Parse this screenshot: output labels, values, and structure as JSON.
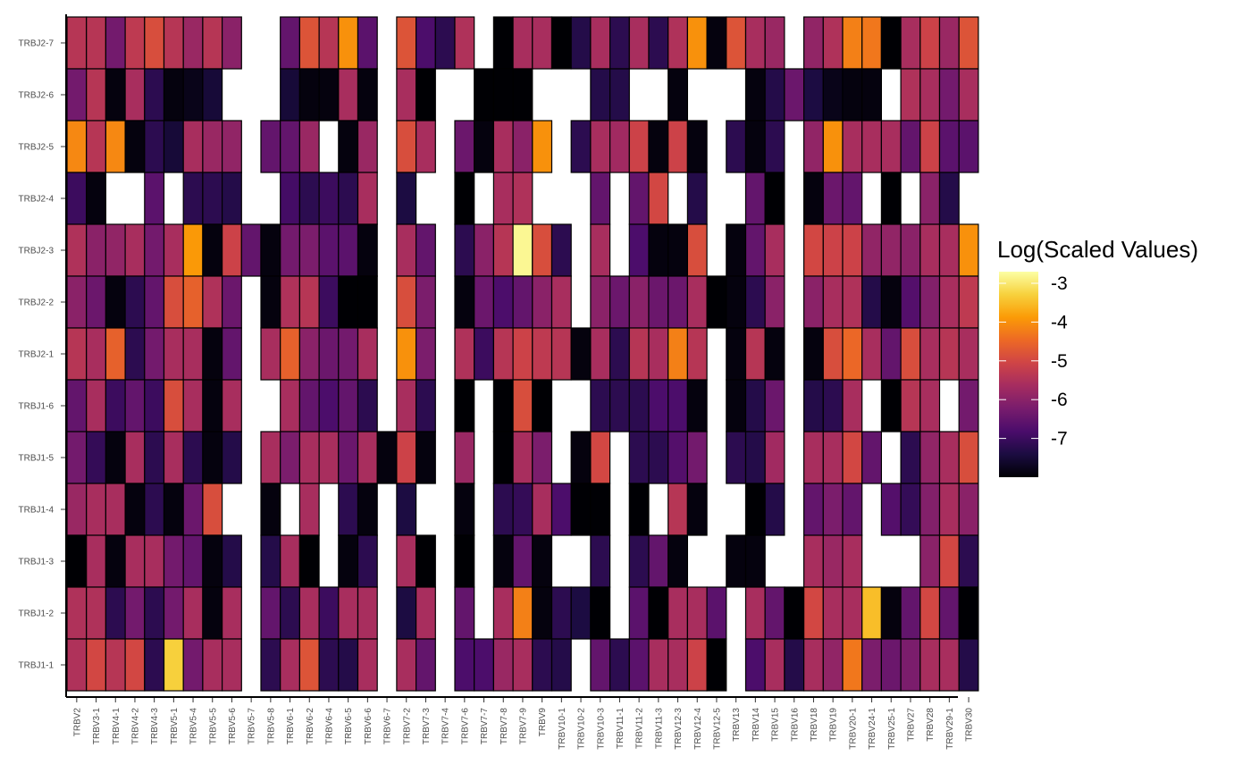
{
  "chart_data": {
    "type": "heatmap",
    "title": "",
    "xlabel": "",
    "ylabel": "",
    "x_categories": [
      "TRBV2",
      "TRBV3-1",
      "TRBV4-1",
      "TRBV4-2",
      "TRBV4-3",
      "TRBV5-1",
      "TRBV5-4",
      "TRBV5-5",
      "TRBV5-6",
      "TRBV5-7",
      "TRBV5-8",
      "TRBV6-1",
      "TRBV6-2",
      "TRBV6-4",
      "TRBV6-5",
      "TRBV6-6",
      "TRBV6-7",
      "TRBV7-2",
      "TRBV7-3",
      "TRBV7-4",
      "TRBV7-6",
      "TRBV7-7",
      "TRBV7-8",
      "TRBV7-9",
      "TRBV9",
      "TRBV10-1",
      "TRBV10-2",
      "TRBV10-3",
      "TRBV11-1",
      "TRBV11-2",
      "TRBV11-3",
      "TRBV12-3",
      "TRBV12-4",
      "TRBV12-5",
      "TRBV13",
      "TRBV14",
      "TRBV15",
      "TRBV16",
      "TRBV18",
      "TRBV19",
      "TRBV20-1",
      "TRBV24-1",
      "TRBV25-1",
      "TRBV27",
      "TRBV28",
      "TRBV29-1",
      "TRBV30"
    ],
    "y_categories": [
      "TRBJ2-7",
      "TRBJ2-6",
      "TRBJ2-5",
      "TRBJ2-4",
      "TRBJ2-3",
      "TRBJ2-2",
      "TRBJ2-1",
      "TRBJ1-6",
      "TRBJ1-5",
      "TRBJ1-4",
      "TRBJ1-3",
      "TRBJ1-2",
      "TRBJ1-1"
    ],
    "values": [
      [
        -5.4,
        -5.4,
        -6.3,
        -5.3,
        -4.9,
        -5.4,
        -5.8,
        -5.4,
        -6.0,
        null,
        null,
        -6.5,
        -4.8,
        -5.4,
        -4.0,
        -6.6,
        null,
        -4.8,
        -6.8,
        -7.2,
        -5.5,
        null,
        -8.0,
        -5.6,
        -5.6,
        -8.0,
        -7.3,
        -5.6,
        -7.2,
        -5.6,
        -7.2,
        -5.5,
        -4.0,
        -7.9,
        -4.8,
        -5.6,
        -5.8,
        null,
        -5.9,
        -5.5,
        -4.2,
        -4.3,
        -8.0,
        -5.6,
        -5.1,
        -5.8,
        -4.8
      ],
      [
        -6.3,
        -5.4,
        -7.9,
        -5.6,
        -7.2,
        -7.9,
        -7.8,
        -7.5,
        null,
        null,
        null,
        -7.5,
        -7.9,
        -7.9,
        -5.6,
        -7.9,
        null,
        -5.6,
        -8.0,
        null,
        null,
        -8.0,
        -8.0,
        -8.0,
        null,
        null,
        null,
        -7.3,
        -7.3,
        null,
        null,
        -7.9,
        null,
        null,
        null,
        -7.9,
        -7.3,
        -6.4,
        -7.4,
        -7.8,
        -7.9,
        -7.9,
        null,
        -5.5,
        -5.6,
        -6.3,
        -5.6
      ],
      [
        -4.1,
        -5.4,
        -4.1,
        -7.9,
        -7.2,
        -7.5,
        -5.6,
        -5.8,
        -5.9,
        null,
        -6.5,
        -6.5,
        -5.8,
        null,
        -7.9,
        -5.8,
        null,
        -4.9,
        -5.6,
        null,
        -6.4,
        -7.9,
        -5.6,
        -6.0,
        -4.0,
        null,
        -7.2,
        -5.6,
        -5.7,
        -5.1,
        -7.9,
        -5.1,
        -7.9,
        null,
        -7.2,
        -7.9,
        -7.2,
        null,
        -5.9,
        -4.0,
        -5.6,
        -5.6,
        -5.6,
        -6.5,
        -5.1,
        -6.6,
        -6.6
      ],
      [
        -7.0,
        -7.9,
        null,
        null,
        -6.6,
        null,
        -7.2,
        -7.2,
        -7.3,
        null,
        null,
        -6.9,
        -7.2,
        -7.0,
        -7.2,
        -5.6,
        null,
        -7.4,
        null,
        null,
        -8.0,
        null,
        -5.6,
        -5.5,
        null,
        null,
        null,
        -6.5,
        null,
        -6.5,
        -5.0,
        null,
        -7.3,
        null,
        null,
        -6.5,
        -8.0,
        null,
        -7.9,
        -6.4,
        -6.5,
        null,
        -8.0,
        null,
        -6.0,
        -7.3,
        null
      ],
      [
        -5.5,
        -6.0,
        -5.9,
        -5.6,
        -6.3,
        -5.6,
        -3.9,
        -7.9,
        -5.1,
        -6.5,
        -7.9,
        -6.3,
        -6.2,
        -6.6,
        -6.6,
        -7.9,
        null,
        -5.6,
        -6.5,
        null,
        -7.2,
        -6.0,
        -5.4,
        -2.8,
        -4.9,
        -7.2,
        null,
        -5.6,
        null,
        -6.8,
        -7.9,
        -7.9,
        -4.9,
        null,
        -7.9,
        -6.5,
        -5.6,
        null,
        -5.0,
        -5.1,
        -5.1,
        -5.9,
        -5.9,
        -6.0,
        -5.6,
        -5.6,
        -4.0
      ],
      [
        -6.0,
        -6.4,
        -7.9,
        -7.2,
        -6.5,
        -4.9,
        -4.6,
        -5.5,
        -6.4,
        null,
        -7.9,
        -5.5,
        -5.4,
        -7.0,
        -8.0,
        -8.0,
        null,
        -4.9,
        -6.2,
        null,
        -7.9,
        -6.4,
        -6.8,
        -6.5,
        -6.0,
        -5.6,
        null,
        -6.0,
        -6.4,
        -6.0,
        -6.4,
        -6.4,
        -5.6,
        -8.0,
        -7.9,
        -7.2,
        -6.0,
        null,
        -6.0,
        -5.6,
        -5.5,
        -7.3,
        -7.9,
        -6.7,
        -6.1,
        -5.6,
        -5.3
      ],
      [
        -5.4,
        -5.6,
        -4.6,
        -7.2,
        -6.3,
        -5.6,
        -5.6,
        -7.9,
        -6.5,
        null,
        -5.6,
        -4.6,
        -6.0,
        -6.4,
        -6.3,
        -5.6,
        null,
        -4.0,
        -6.2,
        null,
        -5.5,
        -7.0,
        -5.4,
        -5.1,
        -5.3,
        -5.4,
        -7.9,
        -5.6,
        -7.2,
        -5.4,
        -5.6,
        -4.2,
        -5.4,
        null,
        -7.9,
        -5.4,
        -7.9,
        null,
        -7.9,
        -4.9,
        -4.5,
        -5.6,
        -6.5,
        -4.9,
        -5.6,
        -5.4,
        -5.6
      ],
      [
        -6.5,
        -5.6,
        -7.0,
        -6.5,
        -7.0,
        -4.9,
        -5.6,
        -7.9,
        -5.6,
        null,
        null,
        -5.6,
        -6.5,
        -6.8,
        -6.5,
        -7.2,
        null,
        -5.6,
        -7.2,
        null,
        -8.0,
        null,
        -8.0,
        -4.9,
        -8.0,
        null,
        null,
        -7.2,
        -7.2,
        -7.2,
        -6.8,
        -6.8,
        -7.9,
        null,
        -7.9,
        -7.3,
        -6.4,
        null,
        -7.3,
        -7.2,
        -5.6,
        null,
        -8.0,
        -5.4,
        -5.6,
        null,
        -6.3
      ],
      [
        -6.3,
        -7.1,
        -7.9,
        -5.6,
        -7.2,
        -5.6,
        -7.2,
        -7.9,
        -7.3,
        null,
        -5.6,
        -6.2,
        -5.6,
        -5.6,
        -6.4,
        -5.6,
        -7.9,
        -5.1,
        -7.9,
        null,
        -5.8,
        null,
        -8.0,
        -5.6,
        -6.2,
        null,
        -7.9,
        -5.0,
        null,
        -7.2,
        -7.2,
        -6.7,
        -6.3,
        null,
        -7.2,
        -7.3,
        -5.7,
        null,
        -5.6,
        -5.6,
        -5.0,
        -6.5,
        null,
        -7.2,
        -5.9,
        -5.6,
        -4.9
      ],
      [
        -5.8,
        -5.6,
        -5.6,
        -7.9,
        -7.2,
        -7.9,
        -6.4,
        -4.9,
        null,
        null,
        -7.9,
        null,
        -5.6,
        null,
        -7.2,
        -7.9,
        null,
        -7.4,
        null,
        null,
        -7.9,
        null,
        -7.2,
        -7.1,
        -5.6,
        -6.8,
        -8.0,
        -8.0,
        null,
        -8.0,
        null,
        -5.4,
        -7.9,
        null,
        null,
        -8.0,
        -7.3,
        null,
        -6.5,
        -6.2,
        -6.5,
        null,
        -6.7,
        -7.1,
        -6.1,
        -5.6,
        -6.0
      ],
      [
        -8.0,
        -5.6,
        -7.9,
        -5.6,
        -5.6,
        -6.3,
        -6.5,
        -7.9,
        -7.3,
        null,
        -7.3,
        -5.6,
        -8.0,
        null,
        -7.9,
        -7.2,
        null,
        -5.6,
        -8.0,
        null,
        -8.0,
        null,
        -7.9,
        -6.5,
        -7.9,
        null,
        null,
        -7.2,
        null,
        -7.2,
        -6.5,
        -7.9,
        null,
        null,
        -7.9,
        -7.9,
        null,
        null,
        -5.6,
        -5.8,
        -5.6,
        null,
        null,
        null,
        -6.0,
        -5.0,
        -7.2
      ],
      [
        -5.5,
        -5.5,
        -7.2,
        -6.3,
        -7.2,
        -6.3,
        -5.6,
        -7.9,
        -5.6,
        null,
        -6.5,
        -7.2,
        -5.6,
        -7.0,
        -5.6,
        -5.6,
        null,
        -7.4,
        -5.6,
        null,
        -6.5,
        null,
        -5.6,
        -4.2,
        -7.9,
        -7.2,
        -7.4,
        -8.0,
        null,
        -6.6,
        -8.0,
        -5.6,
        -5.6,
        -6.6,
        null,
        -5.6,
        -6.5,
        -8.0,
        -5.0,
        -5.6,
        -5.6,
        -3.5,
        -7.9,
        -6.5,
        -5.0,
        -6.5,
        -8.0
      ],
      [
        -5.5,
        -5.0,
        -5.4,
        -5.0,
        -7.2,
        -3.3,
        -6.3,
        -5.6,
        -5.6,
        null,
        -7.2,
        -5.6,
        -4.8,
        -7.2,
        -7.3,
        -5.6,
        null,
        -5.6,
        -6.5,
        null,
        -6.8,
        -6.8,
        -5.8,
        -5.6,
        -7.2,
        -7.3,
        null,
        -6.5,
        -7.2,
        -6.6,
        -5.6,
        -5.6,
        -5.1,
        -8.0,
        null,
        -6.8,
        -5.6,
        -7.3,
        -5.6,
        -5.9,
        -4.3,
        -6.2,
        -6.4,
        -6.2,
        -5.6,
        -5.6,
        -7.3
      ]
    ],
    "legend": {
      "title": "Log(Scaled Values)",
      "position": "right",
      "ticks": [
        -3,
        -4,
        -5,
        -6,
        -7
      ],
      "range": [
        -8,
        -2.7
      ]
    },
    "colormap": [
      "#000004",
      "#1b0c41",
      "#4a0c6b",
      "#781c6d",
      "#a52c60",
      "#cf4446",
      "#ed6925",
      "#fb9b06",
      "#f7d13d",
      "#fcffa4"
    ],
    "grid": false
  }
}
